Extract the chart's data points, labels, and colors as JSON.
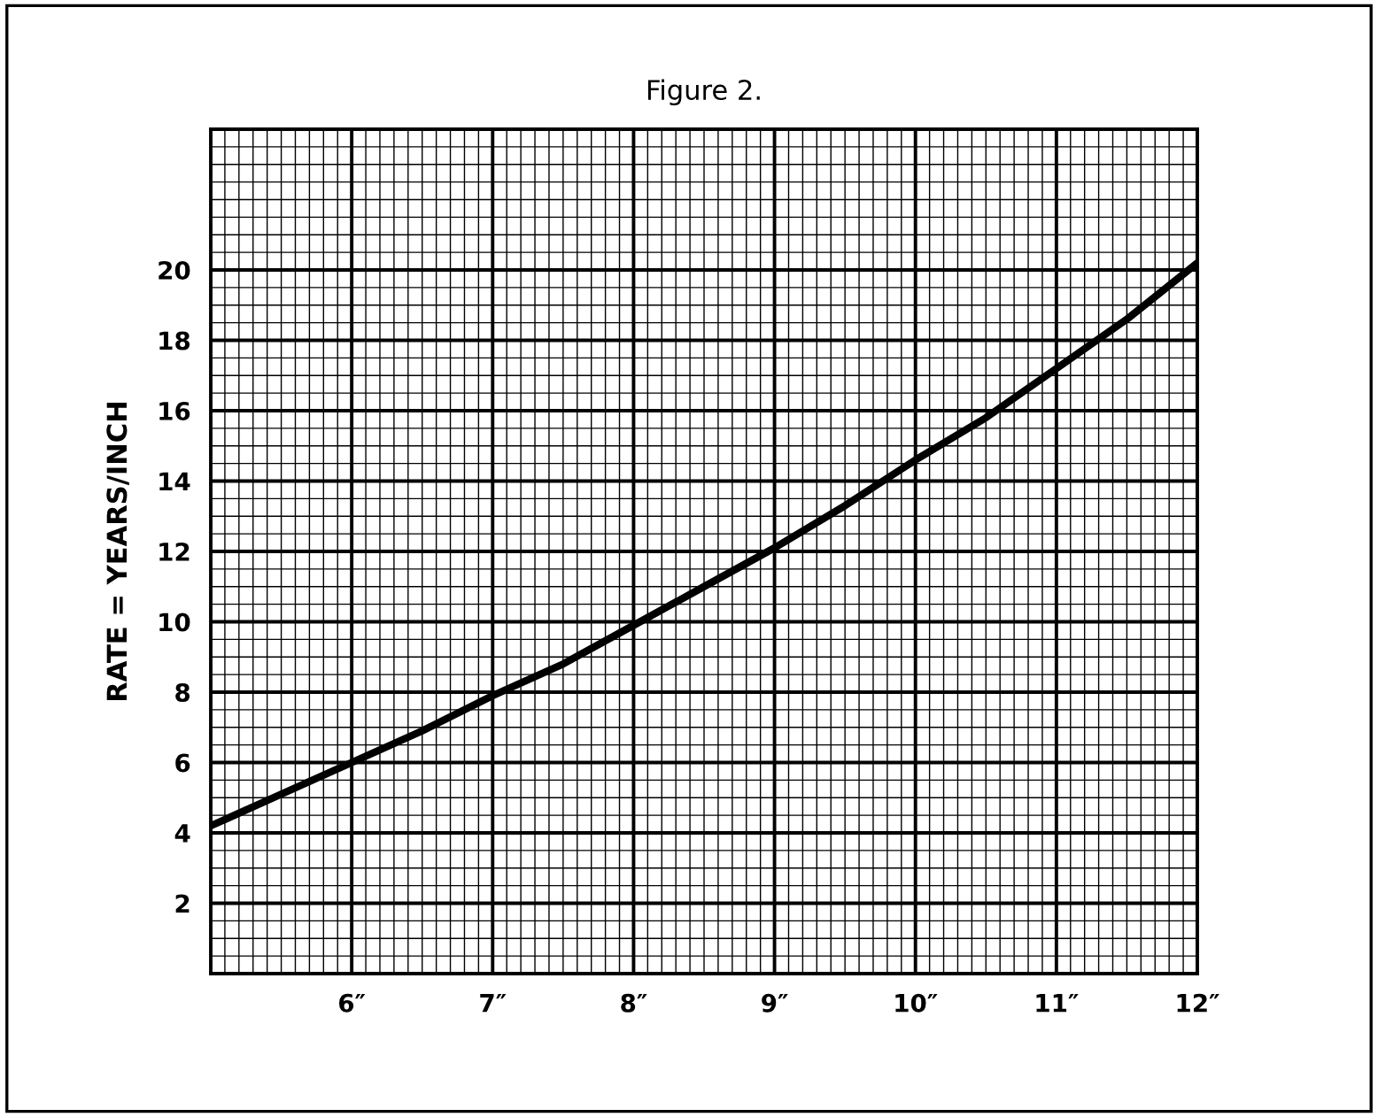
{
  "chart_data": {
    "type": "line",
    "title": "Figure 2.",
    "ylabel": "RATE = YEARS/INCH",
    "x": [
      5,
      5.5,
      6,
      6.5,
      7,
      7.5,
      8,
      8.5,
      9,
      9.5,
      10,
      10.5,
      11,
      11.5,
      12
    ],
    "series": [
      {
        "color": "#000000",
        "values": [
          4.2,
          5.1,
          6.0,
          6.9,
          7.9,
          8.8,
          9.9,
          11.0,
          12.1,
          13.3,
          14.6,
          15.8,
          17.2,
          18.6,
          20.2
        ]
      }
    ],
    "xlim": [
      5,
      12
    ],
    "ylim": [
      0,
      24
    ],
    "xticks": [
      {
        "value": 6,
        "label": "6″"
      },
      {
        "value": 7,
        "label": "7″"
      },
      {
        "value": 8,
        "label": "8″"
      },
      {
        "value": 9,
        "label": "9″"
      },
      {
        "value": 10,
        "label": "10″"
      },
      {
        "value": 11,
        "label": "11″"
      },
      {
        "value": 12,
        "label": "12″"
      }
    ],
    "yticks": [
      2,
      4,
      6,
      8,
      10,
      12,
      14,
      16,
      18,
      20
    ],
    "grid": true,
    "marker": "none",
    "line_style": "solid"
  }
}
